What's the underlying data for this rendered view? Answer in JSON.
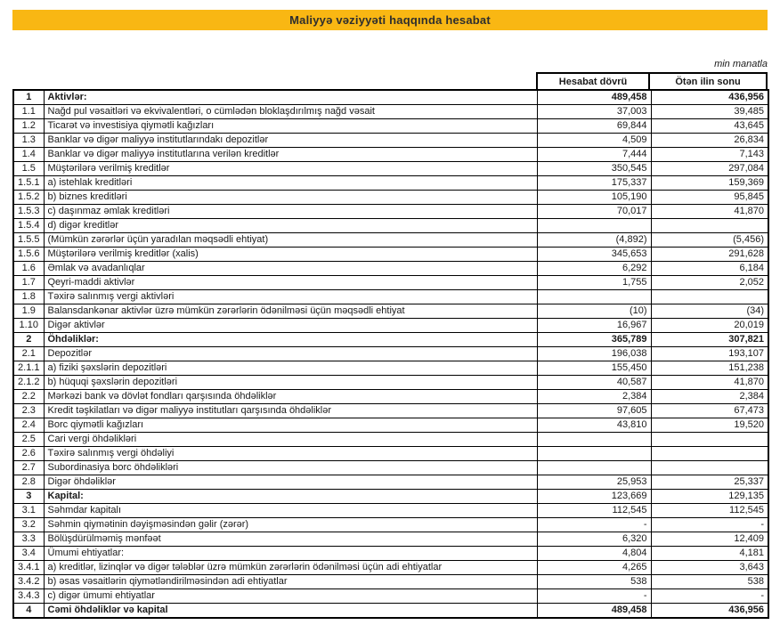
{
  "title": "Maliyyə vəziyyəti haqqında hesabat",
  "unit_note": "min manatla",
  "columns": [
    "Hesabat dövrü",
    "Ötən ilin sonu"
  ],
  "colors": {
    "accent_yellow": "#F9B713",
    "title_text": "#2E2E2E",
    "border": "#000000"
  },
  "table": {
    "rows": [
      {
        "no": "1",
        "label": "Aktivlər:",
        "current": "489,458",
        "previous": "436,956",
        "bold_label": true,
        "bold_values": true
      },
      {
        "no": "1.1",
        "label": "Nağd pul vəsaitləri və ekvivalentləri, o cümlədən bloklaşdırılmış nağd vəsait",
        "current": "37,003",
        "previous": "39,485"
      },
      {
        "no": "1.2",
        "label": "Ticarət və investisiya qiymətli kağızları",
        "current": "69,844",
        "previous": "43,645"
      },
      {
        "no": "1.3",
        "label": "Banklar və digər maliyyə institutlarındakı depozitlər",
        "current": "4,509",
        "previous": "26,834"
      },
      {
        "no": "1.4",
        "label": "Banklar və digər maliyyə institutlarına verilən kreditlər",
        "current": "7,444",
        "previous": "7,143"
      },
      {
        "no": "1.5",
        "label": "Müştərilərə verilmiş kreditlər",
        "current": "350,545",
        "previous": "297,084"
      },
      {
        "no": "1.5.1",
        "label": "a) istehlak kreditləri",
        "current": "175,337",
        "previous": "159,369"
      },
      {
        "no": "1.5.2",
        "label": "b) biznes kreditləri",
        "current": "105,190",
        "previous": "95,845"
      },
      {
        "no": "1.5.3",
        "label": "c) daşınmaz əmlak kreditləri",
        "current": "70,017",
        "previous": "41,870"
      },
      {
        "no": "1.5.4",
        "label": "d) digər kreditlər",
        "current": "",
        "previous": ""
      },
      {
        "no": "1.5.5",
        "label": "(Mümkün zərərlər üçün yaradılan məqsədli ehtiyat)",
        "current": "(4,892)",
        "previous": "(5,456)"
      },
      {
        "no": "1.5.6",
        "label": "Müştərilərə verilmiş kreditlər (xalis)",
        "current": "345,653",
        "previous": "291,628"
      },
      {
        "no": "1.6",
        "label": "Əmlak və avadanlıqlar",
        "current": "6,292",
        "previous": "6,184"
      },
      {
        "no": "1.7",
        "label": "Qeyri-maddi aktivlər",
        "current": "1,755",
        "previous": "2,052"
      },
      {
        "no": "1.8",
        "label": "Təxirə salınmış vergi aktivləri",
        "current": "",
        "previous": ""
      },
      {
        "no": "1.9",
        "label": "Balansdankənar aktivlər üzrə mümkün zərərlərin ödənilməsi üçün məqsədli ehtiyat",
        "current": "(10)",
        "previous": "(34)"
      },
      {
        "no": "1.10",
        "label": "Digər aktivlər",
        "current": "16,967",
        "previous": "20,019"
      },
      {
        "no": "2",
        "label": "Öhdəliklər:",
        "current": "365,789",
        "previous": "307,821",
        "bold_label": true,
        "bold_values": true
      },
      {
        "no": "2.1",
        "label": "Depozitlər",
        "current": "196,038",
        "previous": "193,107"
      },
      {
        "no": "2.1.1",
        "label": "a) fiziki şəxslərin depozitləri",
        "current": "155,450",
        "previous": "151,238"
      },
      {
        "no": "2.1.2",
        "label": "b) hüquqi şəxslərin depozitləri",
        "current": "40,587",
        "previous": "41,870"
      },
      {
        "no": "2.2",
        "label": "Mərkəzi bank və dövlət fondları qarşısında öhdəliklər",
        "current": "2,384",
        "previous": "2,384"
      },
      {
        "no": "2.3",
        "label": "Kredit təşkilatları və digər maliyyə institutları qarşısında öhdəliklər",
        "current": "97,605",
        "previous": "67,473"
      },
      {
        "no": "2.4",
        "label": "Borc qiymətli kağızları",
        "current": "43,810",
        "previous": "19,520"
      },
      {
        "no": "2.5",
        "label": "Cari vergi öhdəlikləri",
        "current": "",
        "previous": ""
      },
      {
        "no": "2.6",
        "label": "Təxirə salınmış vergi öhdəliyi",
        "current": "",
        "previous": ""
      },
      {
        "no": "2.7",
        "label": "Subordinasiya borc öhdəlikləri",
        "current": "",
        "previous": ""
      },
      {
        "no": "2.8",
        "label": "Digər öhdəliklər",
        "current": "25,953",
        "previous": "25,337"
      },
      {
        "no": "3",
        "label": "Kapital:",
        "current": "123,669",
        "previous": "129,135",
        "bold_label": true
      },
      {
        "no": "3.1",
        "label": "Səhmdar kapitalı",
        "current": "112,545",
        "previous": "112,545"
      },
      {
        "no": "3.2",
        "label": "Səhmin qiymətinin dəyişməsindən gəlir (zərər)",
        "current": "-",
        "previous": "-"
      },
      {
        "no": "3.3",
        "label": "Bölüşdürülməmiş mənfəət",
        "current": "6,320",
        "previous": "12,409"
      },
      {
        "no": "3.4",
        "label": "Ümumi ehtiyatlar:",
        "current": "4,804",
        "previous": "4,181"
      },
      {
        "no": "3.4.1",
        "label": "a) kreditlər, lizinqlər və digər tələblər üzrə mümkün zərərlərin ödənilməsi üçün adi ehtiyatlar",
        "current": "4,265",
        "previous": "3,643"
      },
      {
        "no": "3.4.2",
        "label": "b) əsas vəsaitlərin qiymətləndirilməsindən adi ehtiyatlar",
        "current": "538",
        "previous": "538"
      },
      {
        "no": "3.4.3",
        "label": "c) digər ümumi ehtiyatlar",
        "current": "-",
        "previous": "-"
      },
      {
        "no": "4",
        "label": "Cəmi öhdəliklər və kapital",
        "current": "489,458",
        "previous": "436,956",
        "bold_label": true,
        "bold_values": true
      }
    ]
  }
}
